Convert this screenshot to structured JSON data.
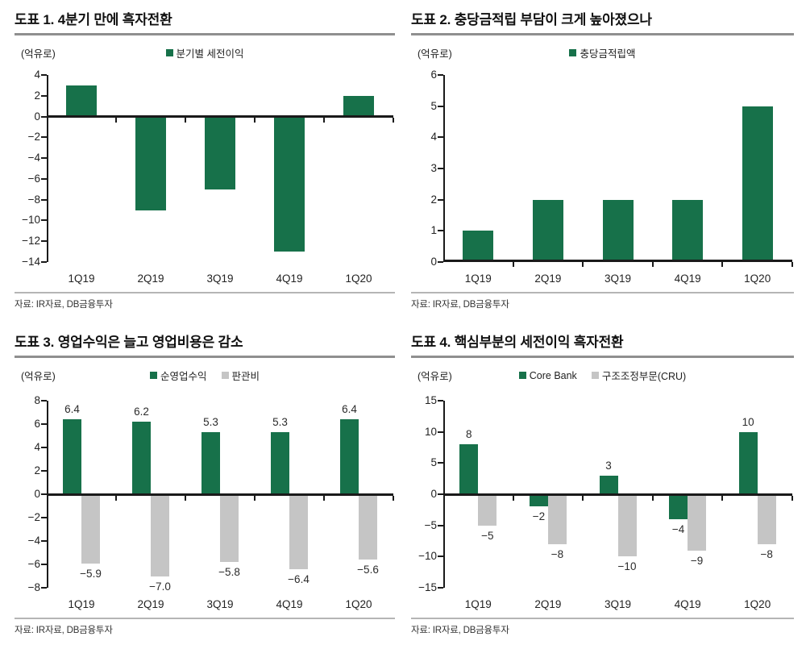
{
  "source_note": "자료: IR자료, DB금융투자",
  "colors": {
    "bar_green": "#17714a",
    "bar_gray": "#c5c5c5",
    "axis_black": "#1a1a1a",
    "title_rule_gray": "#8f8f8f",
    "source_rule_gray": "#b5b5b5"
  },
  "chart_data": [
    {
      "type": "bar",
      "title": "도표 1. 4분기 만에 흑자전환",
      "unit_label": "(억유로)",
      "source": "자료: IR자료, DB금융투자",
      "categories": [
        "1Q19",
        "2Q19",
        "3Q19",
        "4Q19",
        "1Q20"
      ],
      "series": [
        {
          "name": "분기별 세전이익",
          "color": "#17714a",
          "values": [
            3,
            -9,
            -7,
            -13,
            2
          ]
        }
      ],
      "ylim": [
        -14,
        4
      ],
      "ytick_step": 2,
      "show_value_labels": false,
      "legend_position": "top-center",
      "grid": false
    },
    {
      "type": "bar",
      "title": "도표 2. 충당금적립 부담이 크게 높아졌으나",
      "unit_label": "(억유로)",
      "source": "자료: IR자료, DB금융투자",
      "categories": [
        "1Q19",
        "2Q19",
        "3Q19",
        "4Q19",
        "1Q20"
      ],
      "series": [
        {
          "name": "충당금적립액",
          "color": "#17714a",
          "values": [
            1,
            2,
            2,
            2,
            5
          ]
        }
      ],
      "ylim": [
        0,
        6
      ],
      "ytick_step": 1,
      "show_value_labels": false,
      "legend_position": "top-center",
      "grid": false
    },
    {
      "type": "bar",
      "title": "도표 3. 영업수익은 늘고 영업비용은 감소",
      "unit_label": "(억유로)",
      "source": "자료: IR자료, DB금융투자",
      "categories": [
        "1Q19",
        "2Q19",
        "3Q19",
        "4Q19",
        "1Q20"
      ],
      "series": [
        {
          "name": "순영업수익",
          "color": "#17714a",
          "values": [
            6.4,
            6.2,
            5.3,
            5.3,
            6.4
          ],
          "labels": [
            "6.4",
            "6.2",
            "5.3",
            "5.3",
            "6.4"
          ]
        },
        {
          "name": "판관비",
          "color": "#c5c5c5",
          "values": [
            -5.9,
            -7.0,
            -5.8,
            -6.4,
            -5.6
          ],
          "labels": [
            "−5.9",
            "−7.0",
            "−5.8",
            "−6.4",
            "−5.6"
          ]
        }
      ],
      "ylim": [
        -8,
        8
      ],
      "ytick_step": 2,
      "show_value_labels": true,
      "legend_position": "top-center",
      "grid": false
    },
    {
      "type": "bar",
      "title": "도표 4. 핵심부분의 세전이익 흑자전환",
      "unit_label": "(억유로)",
      "source": "자료: IR자료, DB금융투자",
      "categories": [
        "1Q19",
        "2Q19",
        "3Q19",
        "4Q19",
        "1Q20"
      ],
      "series": [
        {
          "name": "Core Bank",
          "color": "#17714a",
          "values": [
            8,
            -2,
            3,
            -4,
            10
          ],
          "labels": [
            "8",
            "−2",
            "3",
            "−4",
            "10"
          ]
        },
        {
          "name": "구조조정부문(CRU)",
          "color": "#c5c5c5",
          "values": [
            -5,
            -8,
            -10,
            -9,
            -8
          ],
          "labels": [
            "−5",
            "−8",
            "−10",
            "−9",
            "−8"
          ]
        }
      ],
      "ylim": [
        -15,
        15
      ],
      "ytick_step": 5,
      "show_value_labels": true,
      "legend_position": "top-center",
      "grid": false
    }
  ]
}
